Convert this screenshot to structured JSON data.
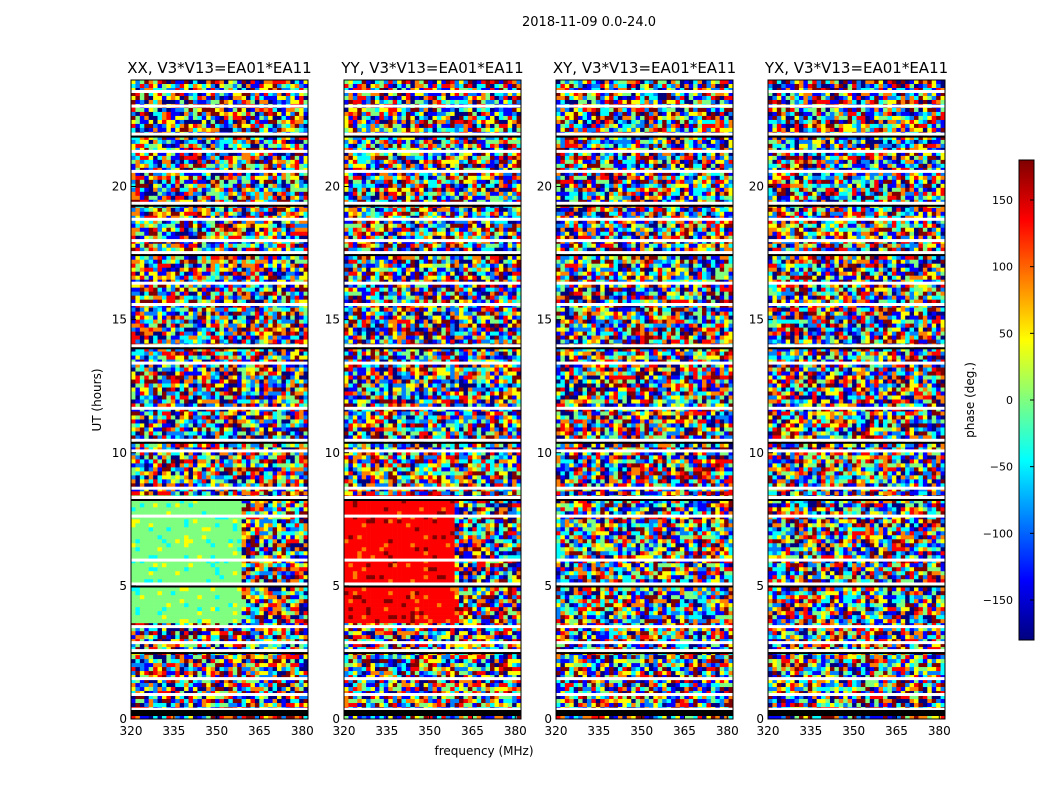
{
  "figure": {
    "suptitle": "2018-11-09 0.0-24.0",
    "xlabel": "frequency (MHz)",
    "ylabel": "UT (hours)",
    "colorbar_label": "phase (deg.)"
  },
  "chart_data": {
    "type": "heatmap",
    "title": "2018-11-09 0.0-24.0",
    "xlabel": "frequency (MHz)",
    "ylabel": "UT (hours)",
    "xlim": [
      320,
      382
    ],
    "ylim": [
      0,
      24
    ],
    "x_ticks": [
      "320",
      "335",
      "350",
      "365",
      "380"
    ],
    "y_ticks": [
      "0",
      "5",
      "10",
      "15",
      "20"
    ],
    "colormap": "jet",
    "colorbar": {
      "label": "phase (deg.)",
      "range": [
        -180,
        180
      ],
      "ticks": [
        "150",
        "100",
        "50",
        "0",
        "−50",
        "−100",
        "−150"
      ]
    },
    "panels": [
      {
        "title": "XX, V3*V13=EA01*EA11"
      },
      {
        "title": "YY, V3*V13=EA01*EA11"
      },
      {
        "title": "XY, V3*V13=EA01*EA11"
      },
      {
        "title": "YX, V3*V13=EA01*EA11"
      }
    ],
    "gaps_ut": [
      0.35,
      0.9,
      1.5,
      2.55,
      2.85,
      3.45,
      5.05,
      5.95,
      7.6,
      8.3,
      8.65,
      10.05,
      10.45,
      11.65,
      13.35,
      14.0,
      15.55,
      16.35,
      17.5,
      17.95,
      18.75,
      19.35,
      20.55,
      21.3,
      21.95,
      23.0,
      23.55
    ]
  },
  "colors": {
    "jet": [
      "#00007f",
      "#0000ff",
      "#007fff",
      "#00ffff",
      "#7fff7f",
      "#ffff00",
      "#ff7f00",
      "#ff0000",
      "#7f0000"
    ]
  }
}
